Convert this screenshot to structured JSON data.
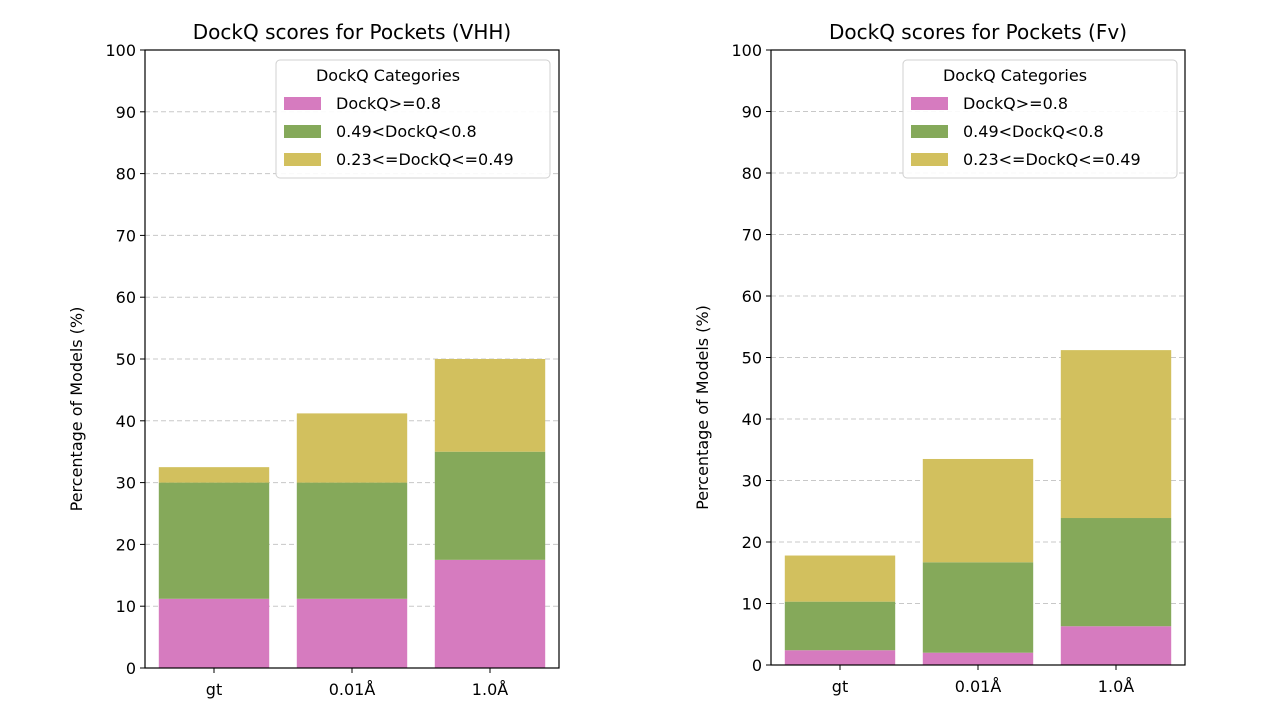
{
  "chart_data": [
    {
      "type": "bar",
      "stacked": true,
      "title": "DockQ scores for Pockets (VHH)",
      "xlabel": "",
      "ylabel": "Percentage of Models (%)",
      "ylim": [
        0,
        100
      ],
      "yticks": [
        "0",
        "10",
        "20",
        "30",
        "40",
        "50",
        "60",
        "70",
        "80",
        "90",
        "100"
      ],
      "categories": [
        "gt",
        "0.01Å",
        "1.0Å"
      ],
      "grid": "y-dashed",
      "legend_title": "DockQ Categories",
      "legend_position": "top-right",
      "series": [
        {
          "name": "DockQ>=0.8",
          "color": "#d67bbf",
          "values": [
            11.2,
            11.2,
            17.5
          ]
        },
        {
          "name": "0.49<DockQ<0.8",
          "color": "#85a95a",
          "values": [
            18.8,
            18.8,
            17.5
          ]
        },
        {
          "name": "0.23<=DockQ<=0.49",
          "color": "#d2c05e",
          "values": [
            2.5,
            11.2,
            15.0
          ]
        }
      ]
    },
    {
      "type": "bar",
      "stacked": true,
      "title": "DockQ scores for Pockets (Fv)",
      "xlabel": "",
      "ylabel": "Percentage of Models (%)",
      "ylim": [
        0,
        100
      ],
      "yticks": [
        "0",
        "10",
        "20",
        "30",
        "40",
        "50",
        "60",
        "70",
        "80",
        "90",
        "100"
      ],
      "categories": [
        "gt",
        "0.01Å",
        "1.0Å"
      ],
      "grid": "y-dashed",
      "legend_title": "DockQ Categories",
      "legend_position": "top-right",
      "series": [
        {
          "name": "DockQ>=0.8",
          "color": "#d67bbf",
          "values": [
            2.4,
            2.0,
            6.3
          ]
        },
        {
          "name": "0.49<DockQ<0.8",
          "color": "#85a95a",
          "values": [
            7.9,
            14.7,
            17.6
          ]
        },
        {
          "name": "0.23<=DockQ<=0.49",
          "color": "#d2c05e",
          "values": [
            7.5,
            16.8,
            27.3
          ]
        }
      ]
    }
  ]
}
